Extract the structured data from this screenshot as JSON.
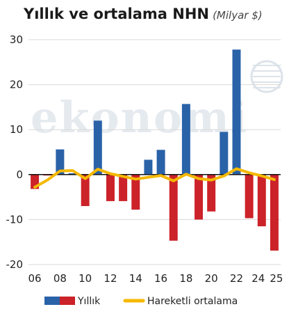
{
  "title": "Yıllık ve ortalama NHN",
  "subtitle": "(Milyar $)",
  "watermark_text": "ekonomi",
  "colors": {
    "positive": "#2a62a8",
    "negative": "#cc2229",
    "moving_average": "#f5b800",
    "grid": "#d9d9d9",
    "zero_line": "#111111",
    "text": "#1a1a1a"
  },
  "chart_data": {
    "type": "bar",
    "categories": [
      "06",
      "07",
      "08",
      "09",
      "10",
      "11",
      "12",
      "13",
      "14",
      "15",
      "16",
      "17",
      "18",
      "19",
      "20",
      "21",
      "22",
      "23",
      "24",
      "25"
    ],
    "x_tick_labels": [
      "06",
      "08",
      "10",
      "12",
      "14",
      "16",
      "18",
      "20",
      "22",
      "24",
      "25"
    ],
    "series": [
      {
        "name": "Yıllık",
        "values": [
          -3.2,
          -0.2,
          5.6,
          0.3,
          -7.0,
          12.0,
          -5.9,
          -5.9,
          -7.8,
          3.3,
          5.5,
          -14.7,
          15.7,
          -10.0,
          -8.2,
          9.5,
          27.8,
          -9.7,
          -11.5,
          -16.9
        ]
      },
      {
        "name": "Hareketli ortalama",
        "type": "line",
        "values": [
          -2.8,
          -1.2,
          0.8,
          0.9,
          -0.9,
          1.2,
          0.2,
          -0.4,
          -1.0,
          -0.6,
          -0.2,
          -1.4,
          0.1,
          -0.9,
          -1.2,
          -0.3,
          1.3,
          0.4,
          -0.3,
          -1.1
        ]
      }
    ],
    "ylim": [
      -20,
      30
    ],
    "yticks": [
      -20,
      -10,
      0,
      10,
      20,
      30
    ],
    "grid": true,
    "legend": [
      {
        "label": "Yıllık",
        "swatch": "bar"
      },
      {
        "label": "Hareketli ortalama",
        "swatch": "line"
      }
    ],
    "legend_position": "bottom"
  }
}
